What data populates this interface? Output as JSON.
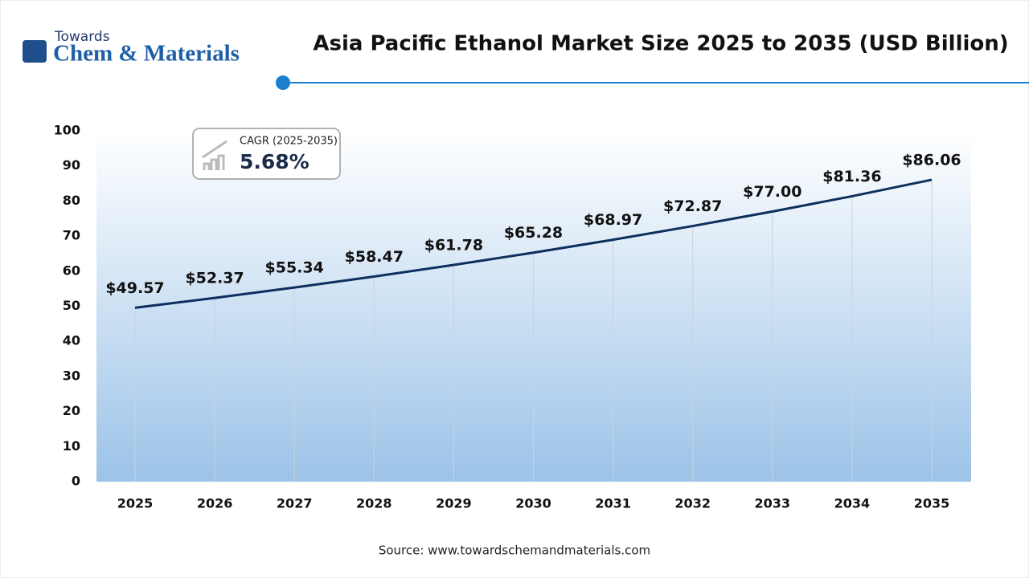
{
  "chart_data": {
    "type": "line",
    "title": "Asia Pacific Ethanol Market Size 2025 to 2035 (USD Billion)",
    "logo": {
      "top": "Towards",
      "bottom": "Chem & Materials"
    },
    "cagr": {
      "label": "CAGR (2025-2035)",
      "value": "5.68%"
    },
    "source": "Source: www.towardschemandmaterials.com",
    "categories": [
      "2025",
      "2026",
      "2027",
      "2028",
      "2029",
      "2030",
      "2031",
      "2032",
      "2033",
      "2034",
      "2035"
    ],
    "values": [
      49.57,
      52.37,
      55.34,
      58.47,
      61.78,
      65.28,
      68.97,
      72.87,
      77.0,
      81.36,
      86.06
    ],
    "value_labels": [
      "$49.57",
      "$52.37",
      "$55.34",
      "$58.47",
      "$61.78",
      "$65.28",
      "$68.97",
      "$72.87",
      "$77.00",
      "$81.36",
      "$86.06"
    ],
    "color": "#0d2f5e",
    "ylim": [
      0,
      100
    ],
    "yticks": [
      0,
      10,
      20,
      30,
      40,
      50,
      60,
      70,
      80,
      90,
      100
    ]
  }
}
